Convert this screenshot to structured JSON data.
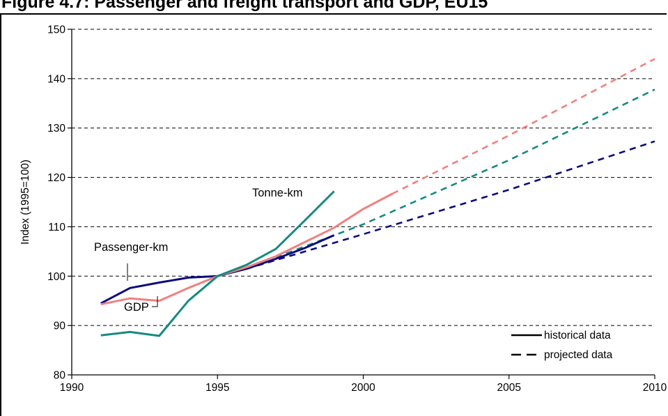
{
  "figure": {
    "title": "Figure 4.7: Passenger and freight transport and GDP, EU15"
  },
  "chart_data": {
    "type": "line",
    "title": "Figure 4.7: Passenger and freight transport and GDP, EU15",
    "xlabel": "",
    "ylabel": "Index (1995=100)",
    "xlim": [
      1990,
      2010
    ],
    "ylim": [
      80,
      150
    ],
    "x_ticks": [
      "1990",
      "1995",
      "2000",
      "2005",
      "2010"
    ],
    "y_ticks": [
      "80",
      "90",
      "100",
      "110",
      "120",
      "130",
      "140",
      "150"
    ],
    "grid": "horizontal dashed",
    "series": [
      {
        "name": "Passenger-km",
        "color": "#0b0b7d",
        "historical": {
          "x": [
            1991,
            1992,
            1993,
            1994,
            1995,
            1996,
            1997,
            1998,
            1999
          ],
          "y": [
            94.5,
            97.6,
            98.7,
            99.7,
            100,
            101.5,
            103.5,
            105.7,
            108.3
          ]
        },
        "projected": {
          "x": [
            1996,
            2000,
            2005,
            2010
          ],
          "y": [
            101.5,
            108.5,
            117.5,
            127.3
          ]
        }
      },
      {
        "name": "GDP",
        "color": "#f08080",
        "historical": {
          "x": [
            1991,
            1992,
            1993,
            1994,
            1995,
            1996,
            1997,
            1998,
            1999,
            2000,
            2001
          ],
          "y": [
            94.3,
            95.5,
            95.0,
            97.6,
            100,
            101.8,
            104.0,
            106.9,
            109.8,
            113.6,
            116.7
          ]
        },
        "projected": {
          "x": [
            2001,
            2005,
            2010
          ],
          "y": [
            116.7,
            128.5,
            144.0
          ]
        }
      },
      {
        "name": "Tonne-km",
        "color": "#168a80",
        "historical": {
          "x": [
            1991,
            1992,
            1993,
            1994,
            1995,
            1996,
            1997,
            1998,
            1999
          ],
          "y": [
            88.0,
            88.7,
            87.9,
            95.0,
            100,
            102.3,
            105.5,
            111.3,
            117.2
          ]
        },
        "projected": {
          "x": [
            1997,
            2000,
            2005,
            2010
          ],
          "y": [
            103.8,
            110.5,
            123.5,
            137.8
          ]
        }
      }
    ],
    "annotations": [
      {
        "text": "Passenger-km",
        "series": "Passenger-km"
      },
      {
        "text": "GDP",
        "series": "GDP"
      },
      {
        "text": "Tonne-km",
        "series": "Tonne-km"
      }
    ],
    "legend": {
      "position": "bottom-right",
      "entries": [
        {
          "label": "historical data",
          "style": "solid"
        },
        {
          "label": "projected data",
          "style": "dashed"
        }
      ]
    }
  }
}
